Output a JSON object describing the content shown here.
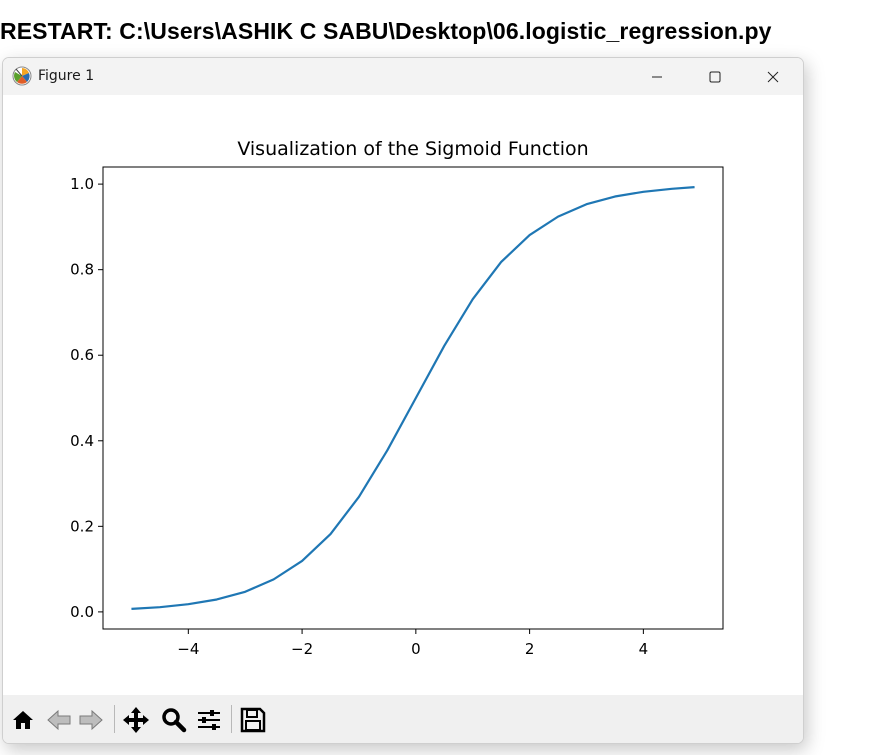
{
  "console": {
    "restart_line": "RESTART: C:\\Users\\ASHIK C SABU\\Desktop\\06.logistic_regression.py"
  },
  "window": {
    "title": "Figure 1",
    "icon": "matplotlib-icon",
    "controls": [
      "minimize",
      "maximize",
      "close"
    ]
  },
  "toolbar": {
    "buttons": [
      "home-icon",
      "back-icon",
      "forward-icon",
      "pan-icon",
      "zoom-icon",
      "configure-subplots-icon",
      "save-icon"
    ]
  },
  "colors": {
    "line": "#1f77b4",
    "titlebar": "#f3f3f3",
    "toolbar": "#f0f0f0"
  },
  "chart_data": {
    "type": "line",
    "title": "Visualization of the Sigmoid Function",
    "xlabel": "",
    "ylabel": "",
    "xlim": [
      -5.5,
      5.4
    ],
    "ylim": [
      -0.04,
      1.04
    ],
    "x_ticks": [
      -4,
      -2,
      0,
      2,
      4
    ],
    "x_tick_labels": [
      "−4",
      "−2",
      "0",
      "2",
      "4"
    ],
    "y_ticks": [
      0.0,
      0.2,
      0.4,
      0.6,
      0.8,
      1.0
    ],
    "y_tick_labels": [
      "0.0",
      "0.2",
      "0.4",
      "0.6",
      "0.8",
      "1.0"
    ],
    "grid": false,
    "legend": false,
    "series": [
      {
        "x": [
          -5.0,
          -4.5,
          -4.0,
          -3.5,
          -3.0,
          -2.5,
          -2.0,
          -1.5,
          -1.0,
          -0.5,
          0.0,
          0.5,
          1.0,
          1.5,
          2.0,
          2.5,
          3.0,
          3.5,
          4.0,
          4.5,
          4.9
        ],
        "values": [
          0.007,
          0.011,
          0.018,
          0.029,
          0.047,
          0.076,
          0.119,
          0.182,
          0.269,
          0.378,
          0.5,
          0.622,
          0.731,
          0.818,
          0.881,
          0.924,
          0.953,
          0.971,
          0.982,
          0.989,
          0.993
        ]
      }
    ]
  }
}
